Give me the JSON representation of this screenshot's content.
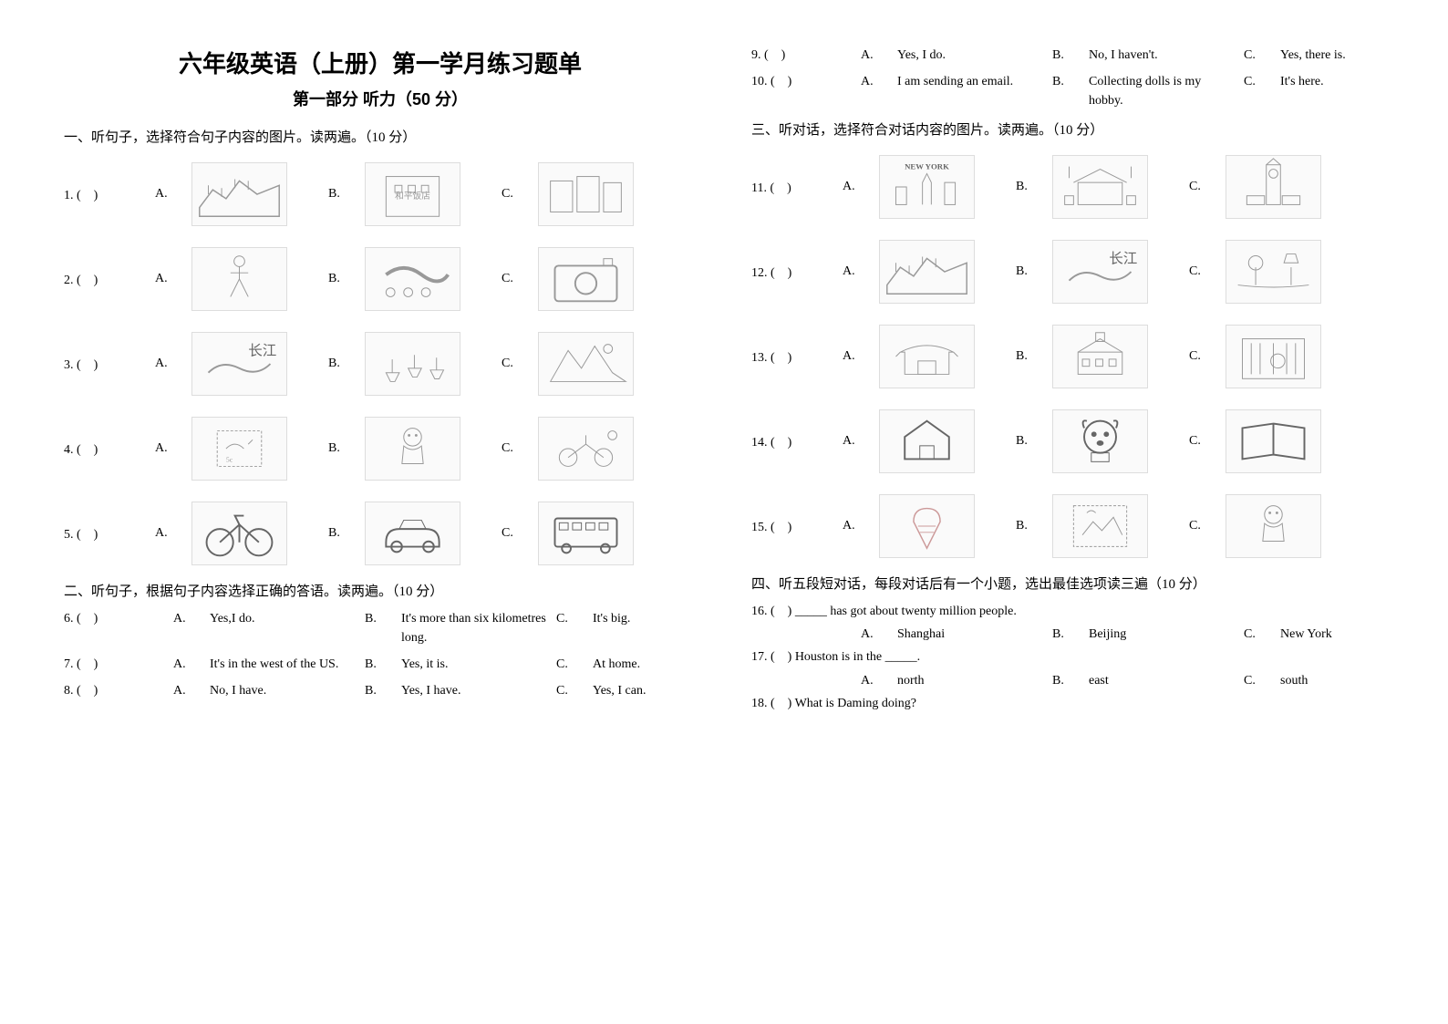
{
  "header": {
    "title": "六年级英语（上册）第一学月练习题单",
    "subtitle": "第一部分 听力（50 分）"
  },
  "sections": {
    "s1": "一、听句子，选择符合句子内容的图片。读两遍。（10 分）",
    "s2": "二、听句子，根据句子内容选择正确的答语。读两遍。（10 分）",
    "s3": "三、听对话，选择符合对话内容的图片。读两遍。（10 分）",
    "s4": "四、听五段短对话，每段对话后有一个小题，选出最佳选项读三遍（10 分）"
  },
  "section1": [
    {
      "num": "1. (　)",
      "icons": [
        "great-wall",
        "hotel",
        "street"
      ]
    },
    {
      "num": "2. (　)",
      "icons": [
        "ballet",
        "dragon-dance",
        "camera"
      ]
    },
    {
      "num": "3. (　)",
      "icons": [
        "river-cj",
        "boats",
        "mountain"
      ]
    },
    {
      "num": "4. (　)",
      "icons": [
        "stamp",
        "doll",
        "bicycle-kids"
      ]
    },
    {
      "num": "5. (　)",
      "icons": [
        "bicycle",
        "car",
        "bus"
      ]
    }
  ],
  "section2": [
    {
      "num": "6. (　)",
      "a": "Yes,I do.",
      "b": "It's more than six kilometres long.",
      "c": "It's big."
    },
    {
      "num": "7. (　)",
      "a": "It's in the west of the US.",
      "b": "Yes, it is.",
      "c": "At home."
    },
    {
      "num": "8. (　)",
      "a": "No, I have.",
      "b": "Yes, I have.",
      "c": "Yes, I can."
    },
    {
      "num": "9. (　)",
      "a": "Yes, I do.",
      "b": "No, I haven't.",
      "c": "Yes, there is."
    },
    {
      "num": "10. (　)",
      "a": "I am sending an email.",
      "b": "Collecting dolls is my hobby.",
      "c": "It's here."
    }
  ],
  "section3": [
    {
      "num": "11. (　)",
      "icons": [
        "new-york",
        "tiananmen",
        "big-ben"
      ]
    },
    {
      "num": "12. (　)",
      "icons": [
        "great-wall",
        "river-cj",
        "west-lake"
      ]
    },
    {
      "num": "13. (　)",
      "icons": [
        "temple",
        "school",
        "library"
      ]
    },
    {
      "num": "14. (　)",
      "icons": [
        "house",
        "dog",
        "book"
      ]
    },
    {
      "num": "15. (　)",
      "icons": [
        "ice-cream",
        "stamp-photo",
        "doll"
      ]
    }
  ],
  "section4": [
    {
      "num": "16. (　)",
      "q": "_____ has got about twenty million people.",
      "a": "Shanghai",
      "b": "Beijing",
      "c": "New York"
    },
    {
      "num": "17. (　)",
      "q": "Houston is in the _____.",
      "a": "north",
      "b": "east",
      "c": "south"
    },
    {
      "num": "18. (　)",
      "q": "What is Daming doing?",
      "a": "",
      "b": "",
      "c": ""
    }
  ],
  "labels": {
    "a": "A.",
    "b": "B.",
    "c": "C."
  }
}
